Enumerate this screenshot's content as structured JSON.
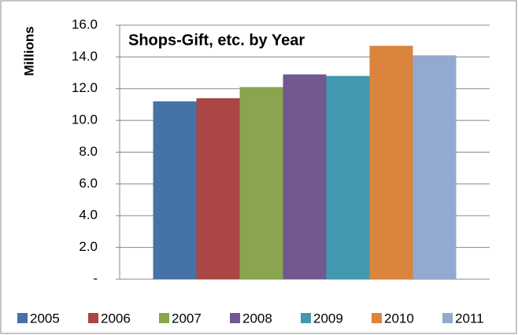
{
  "chart_data": {
    "type": "bar",
    "title": "Shops-Gift, etc. by Year",
    "y_label": "Millions",
    "categories": [
      null
    ],
    "series": [
      {
        "name": "2005",
        "color": "#4572a7",
        "values": [
          11.2
        ]
      },
      {
        "name": "2006",
        "color": "#aa4643",
        "values": [
          11.4
        ]
      },
      {
        "name": "2007",
        "color": "#89a54e",
        "values": [
          12.1
        ]
      },
      {
        "name": "2008",
        "color": "#71588f",
        "values": [
          12.9
        ]
      },
      {
        "name": "2009",
        "color": "#4198af",
        "values": [
          12.8
        ]
      },
      {
        "name": "2010",
        "color": "#db843d",
        "values": [
          14.7
        ]
      },
      {
        "name": "2011",
        "color": "#93a9cf",
        "values": [
          14.1
        ]
      }
    ],
    "ylim": [
      0,
      16
    ],
    "yticks": [
      {
        "value": 0,
        "label": "-"
      },
      {
        "value": 2,
        "label": "2.0"
      },
      {
        "value": 4,
        "label": "4.0"
      },
      {
        "value": 6,
        "label": "6.0"
      },
      {
        "value": 8,
        "label": "8.0"
      },
      {
        "value": 10,
        "label": "10.0"
      },
      {
        "value": 12,
        "label": "12.0"
      },
      {
        "value": 14,
        "label": "14.0"
      },
      {
        "value": 16,
        "label": "16.0"
      }
    ],
    "grid": true,
    "legend": "bottom"
  }
}
